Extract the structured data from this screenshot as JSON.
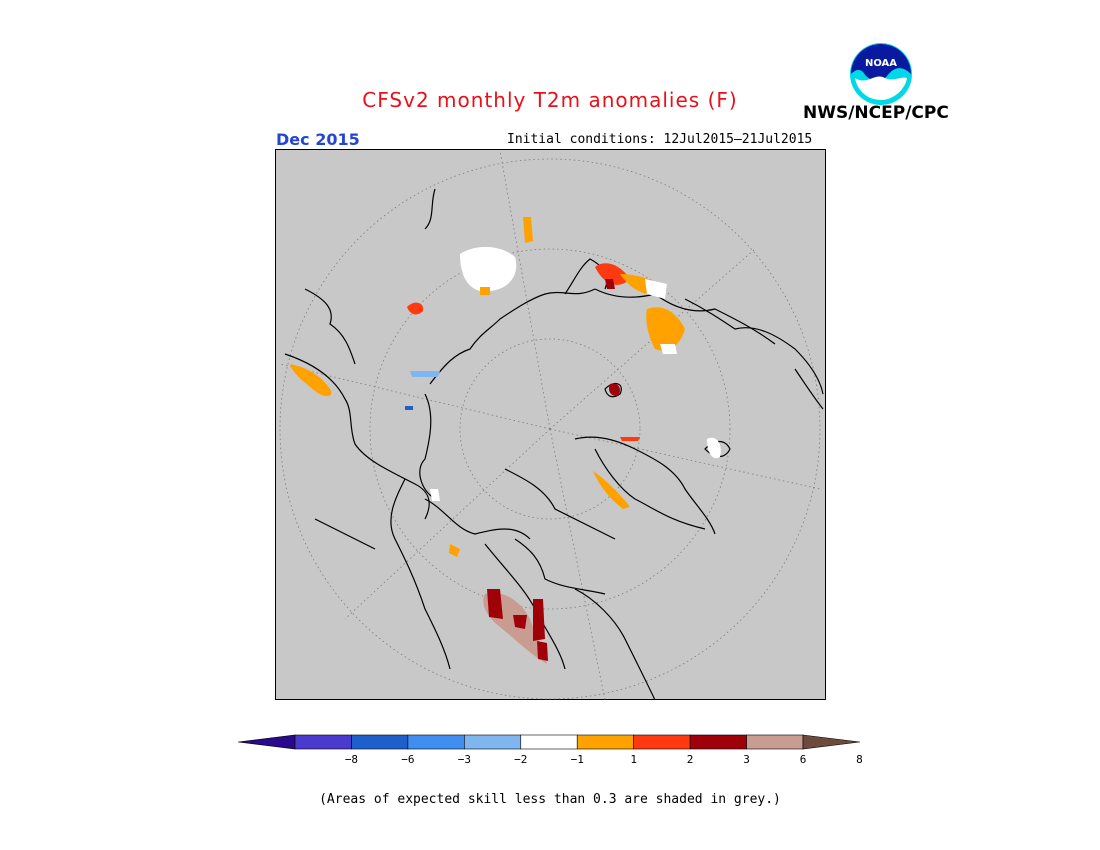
{
  "header": {
    "title": "CFSv2 monthly T2m anomalies (F)",
    "month": "Dec 2015",
    "initial_conditions": "Initial conditions: 12Jul2015–21Jul2015",
    "agency": "NWS/NCEP/CPC",
    "logo_text": "NOAA"
  },
  "legend": {
    "colors": [
      "#2a0a8c",
      "#4a3acd",
      "#1f5fcc",
      "#3f8ef0",
      "#7fb6f0",
      "#ffffff",
      "#ffa200",
      "#ff3a10",
      "#a00008",
      "#c89c90",
      "#6e4a3c"
    ],
    "ticks": [
      "−8",
      "−6",
      "−3",
      "−2",
      "−1",
      "1",
      "2",
      "3",
      "6",
      "8"
    ]
  },
  "colors": {
    "map_background": "#c8c8c8",
    "title_red": "#e8101a",
    "month_blue": "#2346d8"
  },
  "footer": {
    "note": "(Areas of expected skill less than 0.3 are shaded in grey.)"
  }
}
